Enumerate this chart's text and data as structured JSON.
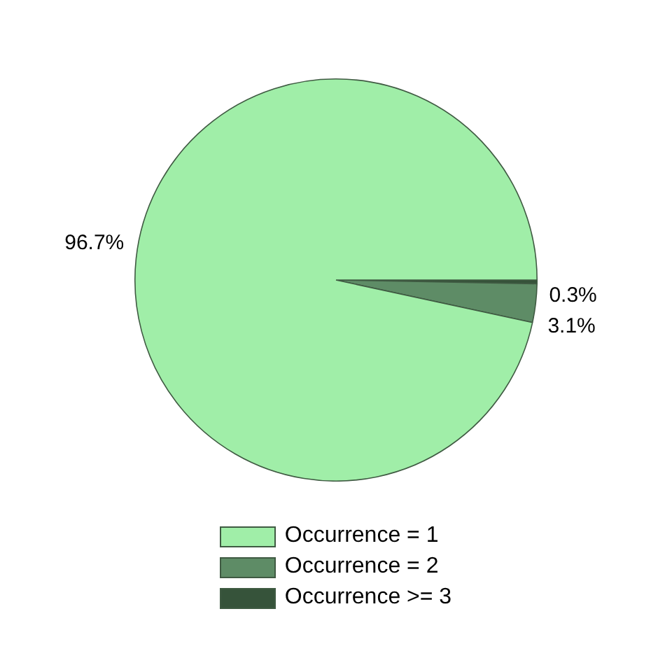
{
  "chart_data": {
    "type": "pie",
    "categories": [
      "Occurrence = 1",
      "Occurrence = 2",
      "Occurrence >= 3"
    ],
    "values": [
      96.7,
      3.1,
      0.3
    ],
    "colors": [
      "#a0eea8",
      "#5e8c66",
      "#36533a"
    ],
    "value_labels": [
      "96.7%",
      "3.1%",
      "0.3%"
    ],
    "legend": "bottom"
  }
}
